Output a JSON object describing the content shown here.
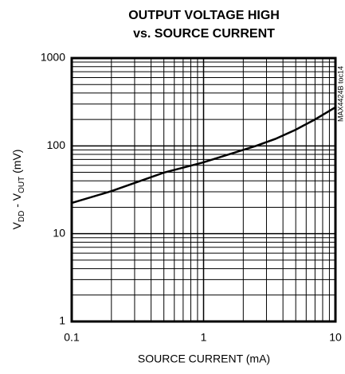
{
  "chart_data": {
    "type": "line",
    "title": [
      "OUTPUT VOLTAGE HIGH",
      "vs. SOURCE CURRENT"
    ],
    "x_label": "SOURCE CURRENT (mA)",
    "y_label": [
      "V",
      "DD",
      " - V",
      "OUT",
      " (mV)"
    ],
    "annotation": "MAX4424B toc14",
    "x": [
      0.1,
      0.2,
      0.5,
      1,
      2.5,
      3.5,
      5,
      7,
      10
    ],
    "series": [
      {
        "color": "#000000",
        "values": [
          22.4,
          30.5,
          49.6,
          65,
          100,
          120,
          153,
          200,
          275
        ]
      }
    ],
    "xlim": [
      0.1,
      10
    ],
    "xticks": [
      0.1,
      1,
      10
    ],
    "ylim": [
      1,
      1000
    ],
    "yticks": [
      1,
      10,
      100,
      1000
    ],
    "log_x": true,
    "log_y": true,
    "grid": true,
    "minor_grid": true
  }
}
